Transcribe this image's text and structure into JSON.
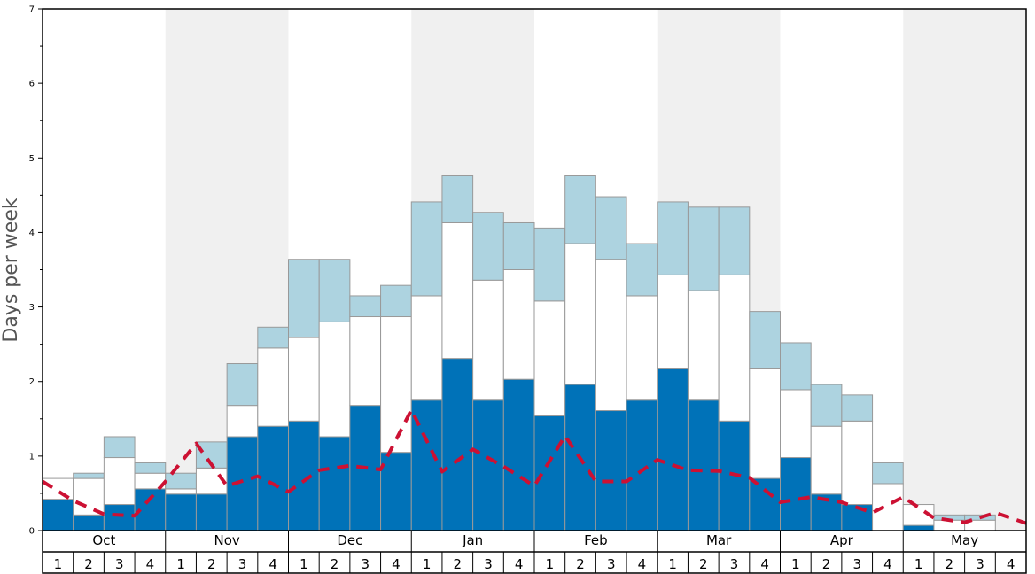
{
  "chart_data": {
    "type": "bar",
    "ylabel": "Days per week",
    "ylim": [
      0,
      7
    ],
    "yticks": [
      "0",
      "1",
      "2",
      "3",
      "4",
      "5",
      "6",
      "7"
    ],
    "months": [
      "Oct",
      "Nov",
      "Dec",
      "Jan",
      "Feb",
      "Mar",
      "Apr",
      "May"
    ],
    "week_labels": [
      "1",
      "2",
      "3",
      "4"
    ],
    "colors": {
      "band_shade": "#f0f0f0",
      "dark_blue": "#0072b8",
      "white": "#ffffff",
      "light_blue": "#add3e0",
      "bar_edge": "#999999",
      "trend_line": "#cc1133",
      "frame": "#000000"
    },
    "series": [
      {
        "name": "dark",
        "values": [
          0.42,
          0.21,
          0.35,
          0.56,
          0.49,
          0.49,
          1.26,
          1.4,
          1.47,
          1.26,
          1.68,
          1.05,
          1.75,
          2.31,
          1.75,
          2.03,
          1.54,
          1.96,
          1.61,
          1.75,
          2.17,
          1.75,
          1.47,
          0.7,
          0.98,
          0.49,
          0.35,
          0.0,
          0.07,
          0.0,
          0.0,
          0.0
        ]
      },
      {
        "name": "white",
        "values": [
          0.28,
          0.49,
          0.63,
          0.21,
          0.07,
          0.35,
          0.42,
          1.05,
          1.12,
          1.54,
          1.19,
          1.82,
          1.4,
          1.82,
          1.61,
          1.47,
          1.54,
          1.89,
          2.03,
          1.4,
          1.26,
          1.47,
          1.96,
          1.47,
          0.91,
          0.91,
          1.12,
          0.63,
          0.28,
          0.14,
          0.14,
          0.0
        ]
      },
      {
        "name": "light",
        "values": [
          0.0,
          0.07,
          0.28,
          0.14,
          0.21,
          0.35,
          0.56,
          0.28,
          1.05,
          0.84,
          0.28,
          0.42,
          1.26,
          0.63,
          0.91,
          0.63,
          0.98,
          0.91,
          0.84,
          0.7,
          0.98,
          1.12,
          0.91,
          0.77,
          0.63,
          0.56,
          0.35,
          0.28,
          0.0,
          0.07,
          0.07,
          0.0
        ]
      }
    ],
    "trend": [
      0.66,
      0.4,
      0.22,
      0.2,
      0.66,
      1.17,
      0.6,
      0.73,
      0.52,
      0.81,
      0.87,
      0.82,
      1.62,
      0.79,
      1.09,
      0.86,
      0.6,
      1.27,
      0.66,
      0.66,
      0.95,
      0.81,
      0.8,
      0.71,
      0.38,
      0.45,
      0.38,
      0.24,
      0.45,
      0.17,
      0.11,
      0.24,
      0.1
    ]
  }
}
